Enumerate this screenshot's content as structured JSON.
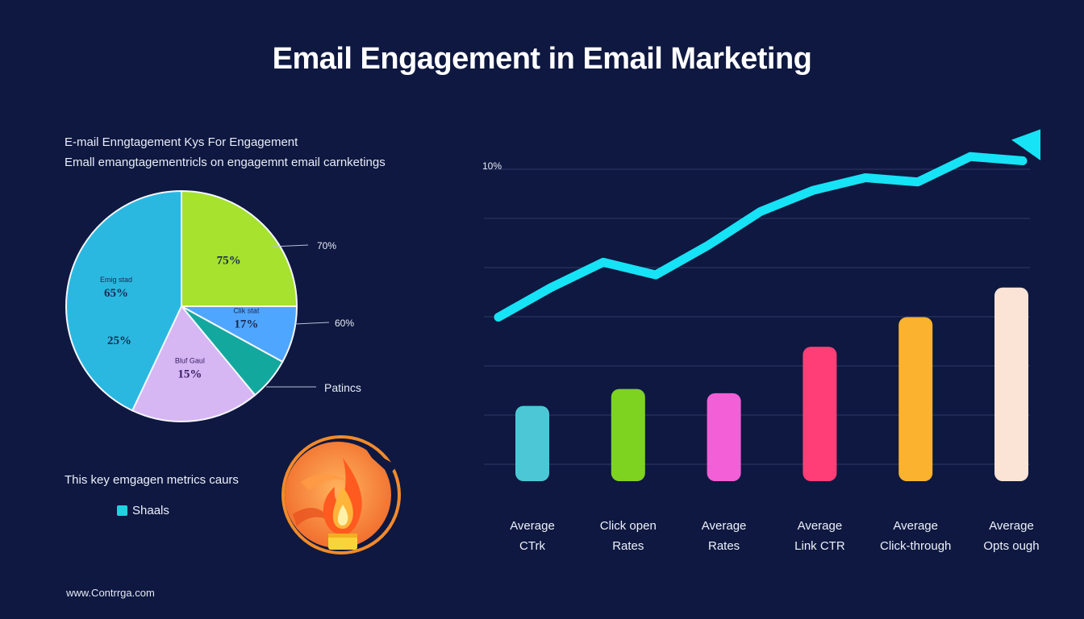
{
  "title": "Email Engagement in  Email Marketing",
  "subtitle_line1": "E-mail Enngtagement Kys For Engagement",
  "subtitle_line2": "Emall emangtagementricls on engagemnt email carnketings",
  "caption": "This key emgagen metrics caurs",
  "legend": {
    "label": "Shaals",
    "color": "#1dd3e0"
  },
  "footer": "www.Contrrga.com",
  "chart_data": [
    {
      "type": "pie",
      "slices": [
        {
          "label": "75%",
          "value": 25,
          "color": "#a6e22e",
          "label_color": "#1b2a52"
        },
        {
          "name": "Clik stat",
          "label": "17%",
          "value": 8,
          "color": "#4fa6ff",
          "label_color": "#1b2a52"
        },
        {
          "label": "",
          "value": 6,
          "color": "#13a89e",
          "label_color": "#1b2a52"
        },
        {
          "name": "Bluf Gaul",
          "label": "15%",
          "value": 18,
          "color": "#d6b6f3",
          "label_color": "#3a2166"
        },
        {
          "name": "Emig stad",
          "label": "65%",
          "value": 43,
          "color": "#2bb8e0",
          "label_color": "#1b2a52"
        }
      ],
      "inner_label_25": "25%",
      "callouts": [
        "70%",
        "60%",
        "Patincs"
      ]
    },
    {
      "type": "bar+line",
      "ytick_label": "10%",
      "categories": [
        [
          "Average",
          "CTrk"
        ],
        [
          "Click open",
          "Rates"
        ],
        [
          "Average",
          "Rates"
        ],
        [
          "Average",
          "Link CTR"
        ],
        [
          "Average",
          "Click-through"
        ],
        [
          "Average",
          "Opts ough"
        ]
      ],
      "bars": [
        {
          "value": 14,
          "color": "#4cc7d6"
        },
        {
          "value": 18,
          "color": "#7ed321"
        },
        {
          "value": 17,
          "color": "#f25fd6"
        },
        {
          "value": 28,
          "color": "#ff3d77"
        },
        {
          "value": 35,
          "color": "#fbb22e"
        },
        {
          "value": 42,
          "color": "#fbe3d6"
        }
      ],
      "ylim": [
        0,
        70
      ],
      "line": {
        "color": "#16e3f5",
        "x": [
          0,
          1,
          2,
          3,
          4,
          5,
          6,
          7,
          8,
          9,
          10
        ],
        "y": [
          35,
          42,
          48,
          45,
          52,
          60,
          65,
          68,
          67,
          73,
          72
        ]
      },
      "grid": true
    }
  ]
}
